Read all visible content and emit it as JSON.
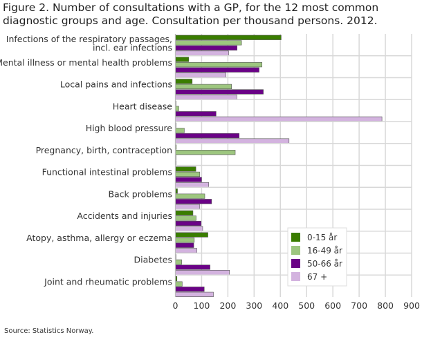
{
  "chart_data": {
    "type": "bar",
    "orientation": "horizontal",
    "title": "Figure 2. Number of consultations with a GP, for the 12 most common diagnostic groups and age. Consultation per thousand persons. 2012.",
    "source": "Source: Statistics Norway.",
    "categories": [
      "Infections of the respiratory passages, incl. ear infections",
      "Mental illness or mental health problems",
      "Local pains and infections",
      "Heart disease",
      "High blood pressure",
      "Pregnancy, birth, contraception",
      "Functional intestinal problems",
      "Back problems",
      "Accidents and injuries",
      "Atopy, asthma, allergy or eczema",
      "Diabetes",
      "Joint and rheumatic problems"
    ],
    "series": [
      {
        "name": "0-15 år",
        "color": "#3a7d00",
        "values": [
          403,
          51,
          64,
          2,
          0,
          3,
          78,
          8,
          67,
          124,
          1,
          6
        ]
      },
      {
        "name": "16-49 år",
        "color": "#9dc67f",
        "values": [
          252,
          330,
          214,
          13,
          34,
          228,
          93,
          112,
          79,
          72,
          24,
          26
        ]
      },
      {
        "name": "50-66 år",
        "color": "#6a0286",
        "values": [
          235,
          319,
          335,
          155,
          243,
          2,
          100,
          138,
          98,
          70,
          132,
          110
        ]
      },
      {
        "name": "67 +",
        "color": "#d3b3df",
        "values": [
          203,
          193,
          234,
          787,
          433,
          1,
          127,
          93,
          104,
          82,
          206,
          145
        ]
      }
    ],
    "xlim": [
      0,
      900
    ],
    "xticks": [
      "0",
      "100",
      "200",
      "300",
      "400",
      "500",
      "600",
      "700",
      "800",
      "900"
    ],
    "grid": true,
    "legend": "bottom-right"
  }
}
